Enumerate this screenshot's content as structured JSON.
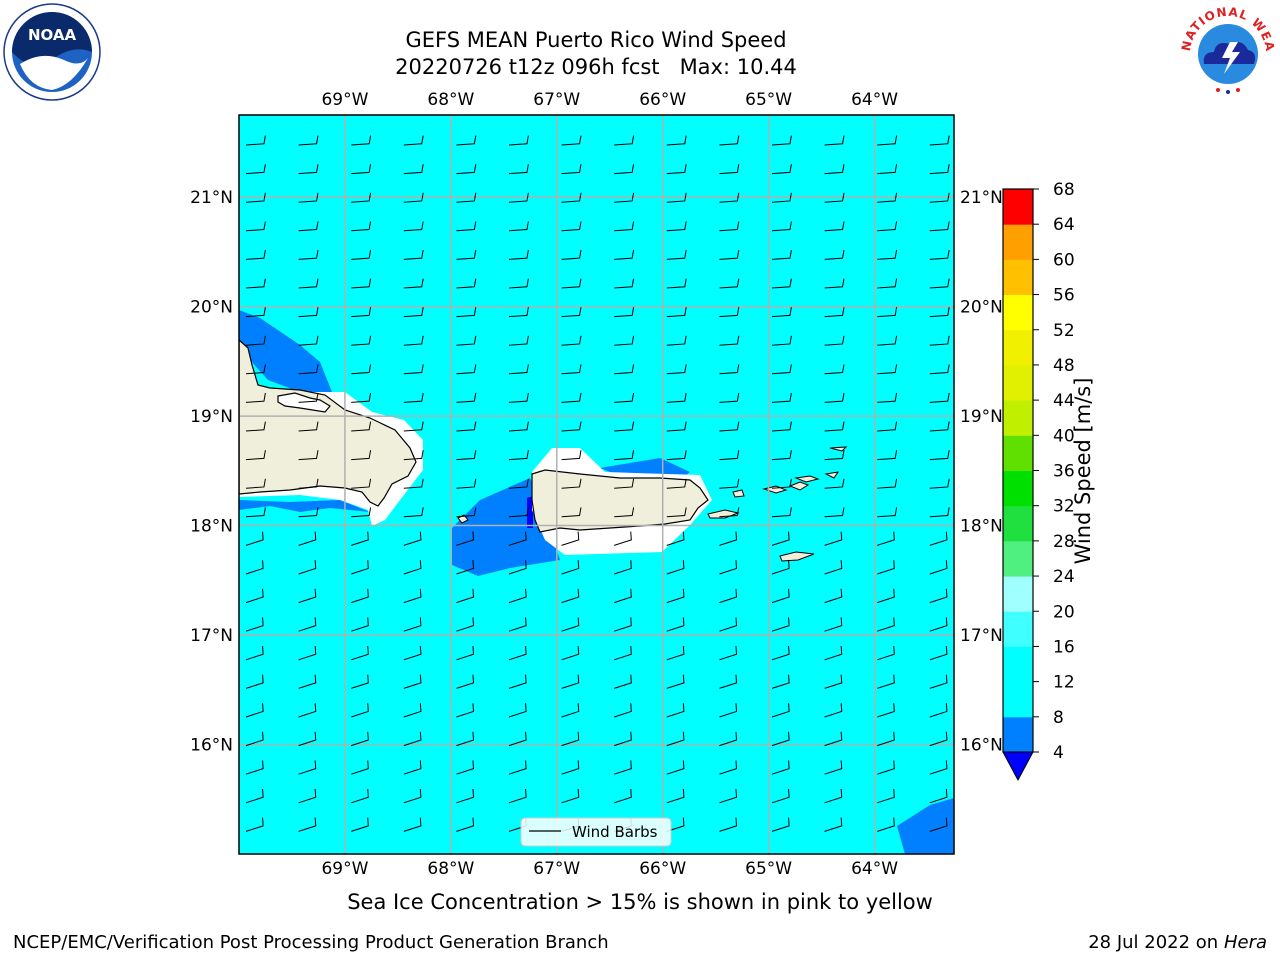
{
  "header": {
    "title_line1": "GEFS MEAN Puerto Rico Wind Speed",
    "title_line2": "20220726 t12z 096h fcst   Max: 10.44"
  },
  "logos": {
    "left": "noaa-logo",
    "left_text": "NOAA",
    "right": "nws-logo",
    "right_text": "NATIONAL WEATHER SERVICE"
  },
  "map": {
    "lon_labels": [
      "69°W",
      "68°W",
      "67°W",
      "66°W",
      "65°W",
      "64°W"
    ],
    "lat_labels": [
      "21°N",
      "20°N",
      "19°N",
      "18°N",
      "17°N",
      "16°N"
    ],
    "lon_range": [
      -70.0,
      -63.25
    ],
    "lat_range": [
      15.0,
      21.75
    ],
    "grid": true,
    "legend": {
      "label": "Wind Barbs",
      "placement": "bottom-center"
    },
    "colors": {
      "ocean_fill": "#00ffff",
      "low_wind_fill": "#0080ff",
      "lowest_wind_fill": "#0000ff",
      "land": "#efefdc",
      "grid": "#b0b0b0"
    }
  },
  "colorbar": {
    "title": "Wind Speed [m/s]",
    "ticks": [
      "68",
      "64",
      "60",
      "56",
      "52",
      "48",
      "44",
      "40",
      "36",
      "32",
      "28",
      "24",
      "20",
      "16",
      "12",
      "8",
      "4"
    ],
    "colors_bottom_to_top": [
      "#0080ff",
      "#00ffff",
      "#00ffff",
      "#40ffff",
      "#a0ffff",
      "#50f080",
      "#20e040",
      "#00e000",
      "#60e000",
      "#c0f000",
      "#e0f000",
      "#f0f000",
      "#ffff00",
      "#ffc000",
      "#ffa000",
      "#ff8000",
      "#ff5000",
      "#ff2000",
      "#ff0000"
    ],
    "extend_min_color": "#0000ff"
  },
  "footer": {
    "note": "Sea Ice Concentration > 15% is shown in pink to yellow",
    "left": "NCEP/EMC/Verification Post Processing Product Generation Branch",
    "date": "28 Jul 2022 on ",
    "host": "Hera"
  }
}
